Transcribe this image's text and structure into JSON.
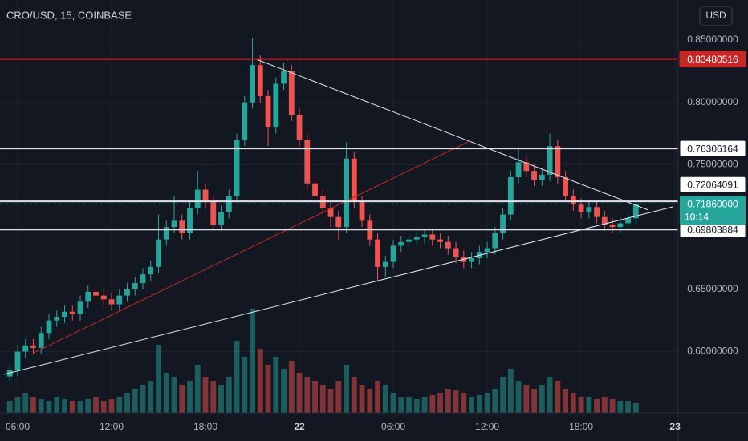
{
  "chart_data": {
    "type": "candlestick",
    "title": "CRO/USD, 15, COINBASE",
    "currency_button": "USD",
    "x": [
      5.5,
      6,
      6.5,
      7,
      7.5,
      8,
      8.5,
      9,
      9.5,
      10,
      10.5,
      11,
      11.5,
      12,
      12.5,
      13,
      13.5,
      14,
      14.5,
      15,
      15.5,
      16,
      16.5,
      17,
      17.5,
      18,
      18.5,
      19,
      19.5,
      20,
      20.5,
      21,
      21.5,
      22,
      22.5,
      23,
      23.5,
      24,
      24.5,
      25,
      25.5,
      26,
      26.5,
      27,
      27.5,
      28,
      28.5,
      29,
      29.5,
      30,
      30.5,
      31,
      31.5,
      32,
      32.5,
      33,
      33.5,
      34,
      34.5,
      35,
      35.5,
      36,
      36.5,
      37,
      37.5,
      38,
      38.5,
      39,
      39.5,
      40,
      40.5,
      41,
      41.5,
      42,
      42.5,
      43,
      43.5,
      44,
      44.5,
      45,
      45.5
    ],
    "open": [
      0.58,
      0.585,
      0.6,
      0.605,
      0.603,
      0.615,
      0.625,
      0.628,
      0.632,
      0.63,
      0.64,
      0.648,
      0.645,
      0.642,
      0.638,
      0.645,
      0.65,
      0.655,
      0.662,
      0.668,
      0.69,
      0.7,
      0.705,
      0.695,
      0.715,
      0.73,
      0.72,
      0.702,
      0.712,
      0.725,
      0.77,
      0.8,
      0.83,
      0.805,
      0.78,
      0.815,
      0.825,
      0.79,
      0.77,
      0.735,
      0.725,
      0.715,
      0.708,
      0.7,
      0.755,
      0.72,
      0.705,
      0.69,
      0.668,
      0.672,
      0.685,
      0.688,
      0.69,
      0.692,
      0.694,
      0.69,
      0.688,
      0.683,
      0.676,
      0.672,
      0.675,
      0.68,
      0.683,
      0.695,
      0.71,
      0.74,
      0.752,
      0.745,
      0.738,
      0.742,
      0.765,
      0.74,
      0.725,
      0.718,
      0.712,
      0.716,
      0.708,
      0.702,
      0.7,
      0.703,
      0.707
    ],
    "high": [
      0.59,
      0.605,
      0.61,
      0.61,
      0.62,
      0.63,
      0.633,
      0.637,
      0.637,
      0.645,
      0.653,
      0.653,
      0.65,
      0.647,
      0.65,
      0.655,
      0.66,
      0.667,
      0.673,
      0.71,
      0.705,
      0.725,
      0.71,
      0.72,
      0.745,
      0.735,
      0.725,
      0.717,
      0.73,
      0.775,
      0.805,
      0.852,
      0.838,
      0.81,
      0.82,
      0.832,
      0.83,
      0.795,
      0.775,
      0.74,
      0.73,
      0.72,
      0.713,
      0.768,
      0.76,
      0.725,
      0.71,
      0.695,
      0.677,
      0.69,
      0.693,
      0.695,
      0.697,
      0.699,
      0.699,
      0.695,
      0.693,
      0.688,
      0.681,
      0.68,
      0.685,
      0.688,
      0.7,
      0.715,
      0.745,
      0.762,
      0.757,
      0.75,
      0.747,
      0.775,
      0.77,
      0.745,
      0.73,
      0.723,
      0.721,
      0.721,
      0.713,
      0.707,
      0.708,
      0.712,
      0.721
    ],
    "low": [
      0.575,
      0.58,
      0.595,
      0.598,
      0.598,
      0.61,
      0.62,
      0.623,
      0.625,
      0.625,
      0.635,
      0.64,
      0.637,
      0.633,
      0.633,
      0.64,
      0.645,
      0.65,
      0.657,
      0.663,
      0.685,
      0.695,
      0.69,
      0.69,
      0.71,
      0.715,
      0.697,
      0.697,
      0.707,
      0.72,
      0.765,
      0.795,
      0.8,
      0.765,
      0.775,
      0.81,
      0.785,
      0.765,
      0.73,
      0.72,
      0.71,
      0.7,
      0.69,
      0.695,
      0.715,
      0.7,
      0.685,
      0.656,
      0.66,
      0.667,
      0.68,
      0.683,
      0.685,
      0.687,
      0.685,
      0.683,
      0.678,
      0.671,
      0.667,
      0.667,
      0.67,
      0.675,
      0.678,
      0.69,
      0.705,
      0.735,
      0.74,
      0.733,
      0.733,
      0.737,
      0.735,
      0.72,
      0.713,
      0.707,
      0.707,
      0.703,
      0.697,
      0.695,
      0.695,
      0.698,
      0.702
    ],
    "close": [
      0.585,
      0.6,
      0.605,
      0.603,
      0.615,
      0.625,
      0.628,
      0.632,
      0.63,
      0.64,
      0.648,
      0.645,
      0.642,
      0.638,
      0.645,
      0.65,
      0.655,
      0.662,
      0.668,
      0.69,
      0.7,
      0.705,
      0.695,
      0.715,
      0.73,
      0.72,
      0.702,
      0.712,
      0.725,
      0.77,
      0.8,
      0.83,
      0.805,
      0.78,
      0.815,
      0.825,
      0.79,
      0.77,
      0.735,
      0.725,
      0.715,
      0.708,
      0.7,
      0.755,
      0.72,
      0.705,
      0.69,
      0.668,
      0.672,
      0.685,
      0.688,
      0.69,
      0.692,
      0.694,
      0.69,
      0.688,
      0.683,
      0.676,
      0.672,
      0.675,
      0.68,
      0.683,
      0.695,
      0.71,
      0.74,
      0.752,
      0.745,
      0.738,
      0.742,
      0.765,
      0.74,
      0.725,
      0.718,
      0.712,
      0.716,
      0.708,
      0.702,
      0.7,
      0.703,
      0.707,
      0.7186
    ],
    "volume": [
      15,
      20,
      25,
      20,
      18,
      15,
      20,
      18,
      15,
      15,
      18,
      20,
      15,
      18,
      20,
      25,
      30,
      35,
      40,
      85,
      50,
      45,
      35,
      40,
      60,
      45,
      40,
      35,
      45,
      90,
      70,
      130,
      80,
      60,
      70,
      55,
      65,
      50,
      45,
      40,
      35,
      30,
      40,
      60,
      45,
      35,
      30,
      40,
      35,
      25,
      20,
      20,
      18,
      20,
      22,
      25,
      30,
      28,
      25,
      20,
      22,
      25,
      30,
      45,
      55,
      40,
      35,
      30,
      35,
      45,
      40,
      30,
      25,
      20,
      20,
      18,
      20,
      18,
      15,
      15,
      12
    ],
    "volume_ylim": [
      0,
      515
    ],
    "up_color": "#26a69a",
    "down_color": "#ef5350",
    "xlim": [
      4.872,
      48.2
    ],
    "ylim": [
      0.5508,
      0.8822
    ],
    "xticks": [
      {
        "value": 6,
        "label": "06:00"
      },
      {
        "value": 12,
        "label": "12:00"
      },
      {
        "value": 18,
        "label": "18:00"
      },
      {
        "value": 24,
        "label": "22"
      },
      {
        "value": 30,
        "label": "06:00"
      },
      {
        "value": 36,
        "label": "12:00"
      },
      {
        "value": 42,
        "label": "18:00"
      },
      {
        "value": 48,
        "label": "23"
      }
    ],
    "yticks": [
      {
        "value": 0.85,
        "label": "0.85000000"
      },
      {
        "value": 0.8,
        "label": "0.80000000"
      },
      {
        "value": 0.75,
        "label": "0.75000000"
      },
      {
        "value": 0.65,
        "label": "0.65000000"
      },
      {
        "value": 0.6,
        "label": "0.60000000"
      }
    ],
    "grid": true,
    "levels": [
      {
        "value": 0.83480516,
        "color": "#c62828"
      },
      {
        "value": 0.76306164,
        "color": "#e0e3eb"
      },
      {
        "value": 0.72064091,
        "color": "#e0e3eb"
      },
      {
        "value": 0.69803884,
        "color": "#e0e3eb"
      }
    ],
    "last_price": {
      "value": 0.7186,
      "label": "0.71860000"
    },
    "countdown": "10:14",
    "trendlines": [
      {
        "color": "#e0e3eb",
        "x": [
          5.13,
          47.85
        ],
        "y": [
          0.5817,
          0.7162
        ]
      },
      {
        "color": "#e0e3eb",
        "x": [
          21.18,
          46.3
        ],
        "y": [
          0.835,
          0.7136
        ]
      },
      {
        "color": "#c62828",
        "x": [
          7.03,
          34.87
        ],
        "y": [
          0.599,
          0.769
        ]
      }
    ]
  }
}
